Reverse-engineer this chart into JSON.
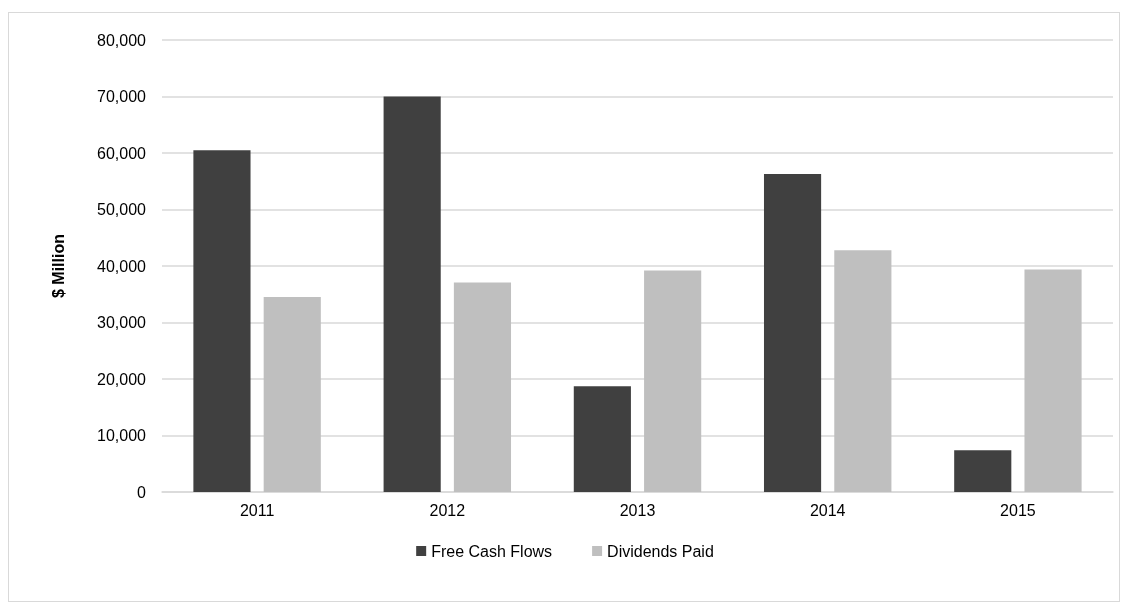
{
  "chart_data": {
    "type": "bar",
    "ylabel": "$ Million",
    "categories": [
      "2011",
      "2012",
      "2013",
      "2014",
      "2015"
    ],
    "series": [
      {
        "name": "Free Cash Flows",
        "color": "#404040",
        "values": [
          60500,
          70000,
          18700,
          56300,
          7400
        ]
      },
      {
        "name": "Dividends Paid",
        "color": "#bfbfbf",
        "values": [
          34500,
          37100,
          39200,
          42800,
          39400
        ]
      }
    ],
    "ylim": [
      0,
      80000
    ],
    "yticks": [
      {
        "value": 0,
        "label": "0"
      },
      {
        "value": 10000,
        "label": "10,000"
      },
      {
        "value": 20000,
        "label": "20,000"
      },
      {
        "value": 30000,
        "label": "30,000"
      },
      {
        "value": 40000,
        "label": "40,000"
      },
      {
        "value": 50000,
        "label": "50,000"
      },
      {
        "value": 60000,
        "label": "60,000"
      },
      {
        "value": 70000,
        "label": "70,000"
      },
      {
        "value": 80000,
        "label": "80,000"
      }
    ],
    "grid": "y",
    "legend": "bottom"
  }
}
